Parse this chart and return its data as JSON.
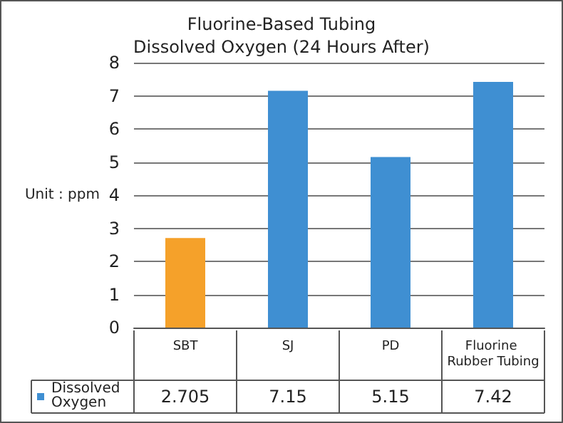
{
  "chart_data": {
    "type": "bar",
    "title": "Fluorine-Based Tubing\nDissolved Oxygen (24 Hours After)",
    "ylabel": "Unit : ppm",
    "categories": [
      "SBT",
      "SJ",
      "PD",
      "Fluorine Rubber Tubing"
    ],
    "series": [
      {
        "name": "Dissolved Oxygen",
        "color": "#3f8fd2",
        "colors": [
          "#f5a12a",
          "#3f8fd2",
          "#3f8fd2",
          "#3f8fd2"
        ],
        "values": [
          2.705,
          7.15,
          5.15,
          7.42
        ]
      }
    ],
    "ylim": [
      0,
      8
    ],
    "yticks": [
      0,
      1,
      2,
      3,
      4,
      5,
      6,
      7,
      8
    ],
    "grid": "y",
    "data_labels": true,
    "legend": "bottom left"
  }
}
